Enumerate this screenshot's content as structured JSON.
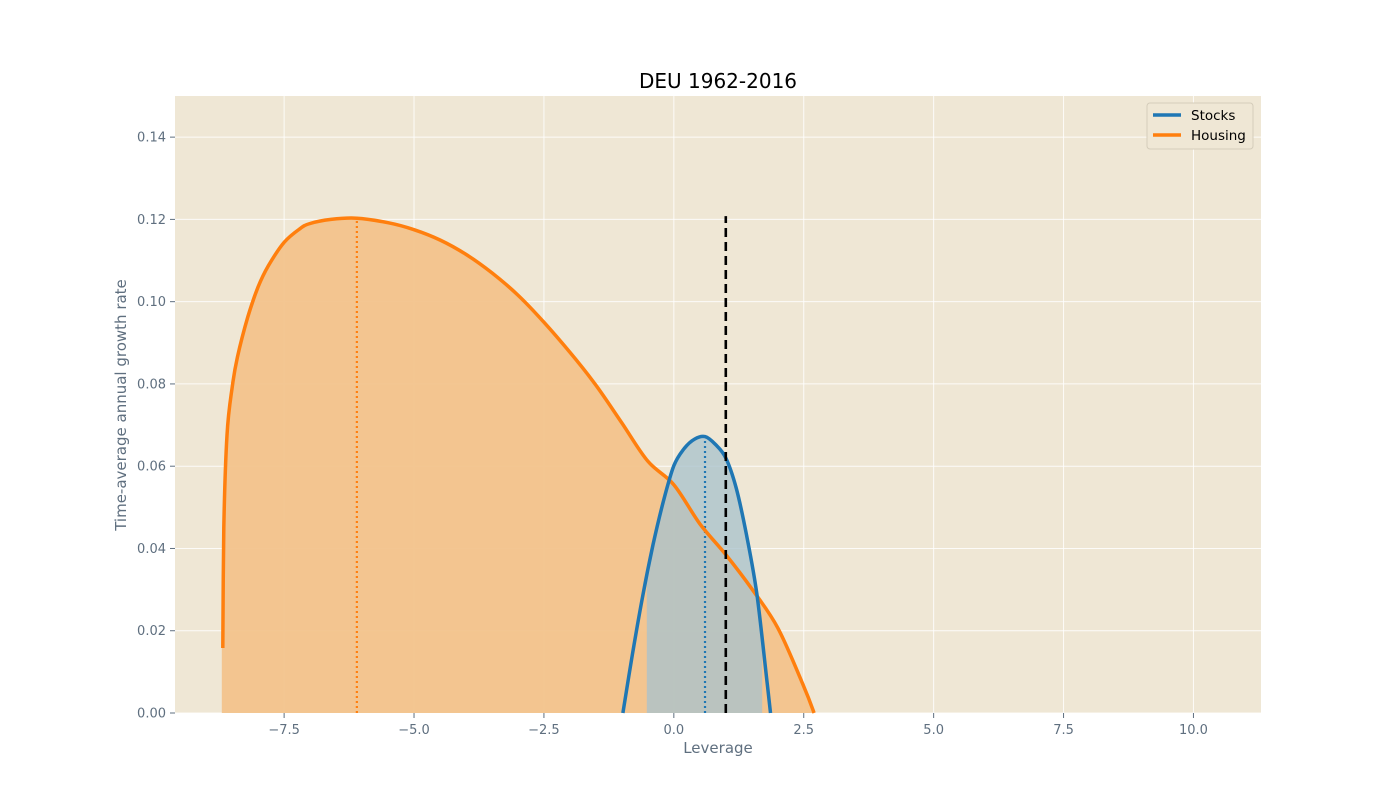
{
  "chart_data": {
    "type": "line",
    "title": "DEU 1962-2016",
    "xlabel": "Leverage",
    "ylabel": "Time-average annual growth rate",
    "xlim": [
      -9.6,
      11.3
    ],
    "ylim": [
      0.0,
      0.15
    ],
    "x_ticks": [
      -7.5,
      -5.0,
      -2.5,
      0.0,
      2.5,
      5.0,
      7.5,
      10.0
    ],
    "x_tick_labels": [
      "−7.5",
      "−5.0",
      "−2.5",
      "0.0",
      "2.5",
      "5.0",
      "7.5",
      "10.0"
    ],
    "y_ticks": [
      0.0,
      0.02,
      0.04,
      0.06,
      0.08,
      0.1,
      0.12,
      0.14
    ],
    "y_tick_labels": [
      "0.00",
      "0.02",
      "0.04",
      "0.06",
      "0.08",
      "0.10",
      "0.12",
      "0.14"
    ],
    "grid": true,
    "legend_position": "top-right",
    "background_color": "#efe7d5",
    "series": [
      {
        "name": "Stocks",
        "color": "#1f77b4",
        "fill_color": "#a9c3cc",
        "fill_range": [
          -0.52,
          1.7
        ],
        "optimum_leverage": 0.6,
        "optimum_growth": 0.0672,
        "x": [
          -0.98,
          -0.8,
          -0.6,
          -0.4,
          -0.2,
          0.0,
          0.2,
          0.4,
          0.6,
          0.8,
          1.0,
          1.2,
          1.4,
          1.6,
          1.8,
          1.86
        ],
        "y": [
          0.0,
          0.0141,
          0.0284,
          0.0409,
          0.0515,
          0.0601,
          0.0643,
          0.0666,
          0.0672,
          0.0653,
          0.062,
          0.0547,
          0.0432,
          0.0287,
          0.0068,
          0.0
        ]
      },
      {
        "name": "Housing",
        "color": "#ff7f0e",
        "fill_color": "#f2c38c",
        "fill_range": [
          -8.7,
          2.7
        ],
        "optimum_leverage": -6.1,
        "optimum_growth": 0.1203,
        "x": [
          -8.68,
          -8.66,
          -8.6,
          -8.5,
          -8.4,
          -8.2,
          -8.0,
          -7.8,
          -7.5,
          -7.2,
          -7.0,
          -6.6,
          -6.1,
          -5.5,
          -5.0,
          -4.5,
          -4.0,
          -3.5,
          -3.0,
          -2.5,
          -2.0,
          -1.5,
          -1.0,
          -0.5,
          0.0,
          0.5,
          1.0,
          1.5,
          2.0,
          2.5,
          2.7
        ],
        "y": [
          0.0158,
          0.045,
          0.0675,
          0.0792,
          0.0865,
          0.0962,
          0.1036,
          0.1088,
          0.1144,
          0.1177,
          0.119,
          0.12,
          0.1203,
          0.1192,
          0.1175,
          0.115,
          0.1115,
          0.107,
          0.1016,
          0.095,
          0.0877,
          0.0797,
          0.0705,
          0.0612,
          0.0555,
          0.046,
          0.0385,
          0.0302,
          0.0207,
          0.0065,
          0.0
        ]
      }
    ],
    "reference_line": {
      "x": 1.0,
      "y_top": 0.1208,
      "color": "#000000",
      "style": "dashed"
    }
  }
}
